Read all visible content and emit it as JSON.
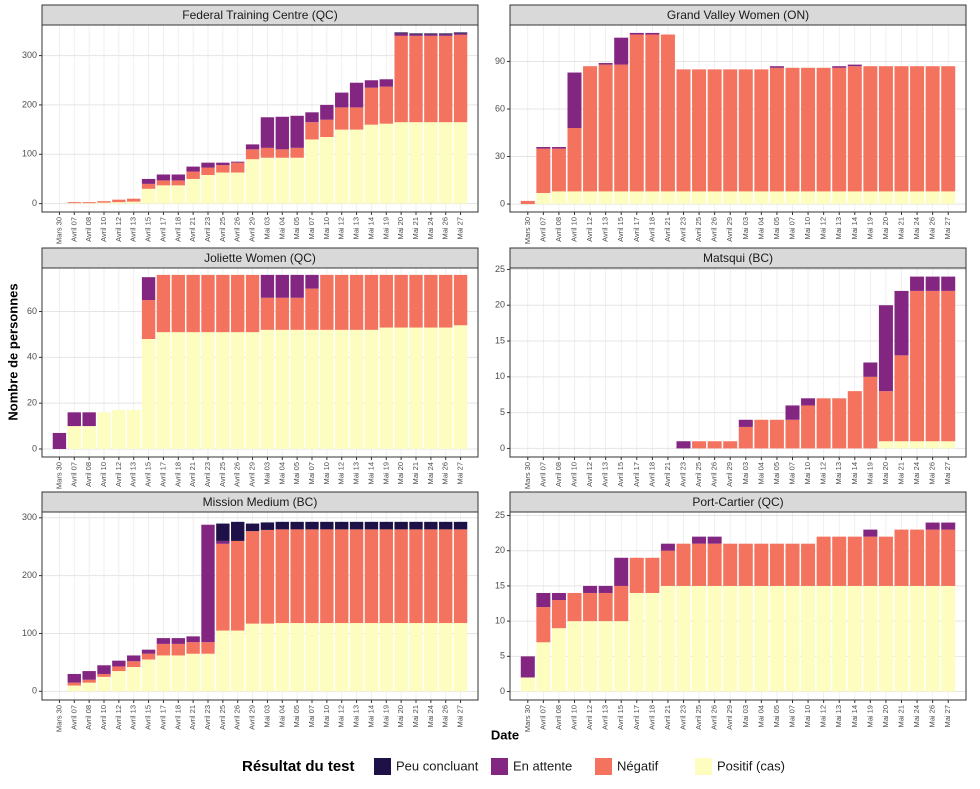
{
  "chart_data": {
    "type": "bar",
    "stacked": true,
    "grid": true,
    "x_label": "Date",
    "y_label": "Nombre de personnes",
    "legend_title": "Résultat du test",
    "legend_position": "bottom",
    "categories": [
      "Mars 30",
      "Avril 07",
      "Avril 08",
      "Avril 10",
      "Avril 12",
      "Avril 13",
      "Avril 15",
      "Avril 17",
      "Avril 18",
      "Avril 21",
      "Avril 23",
      "Avril 25",
      "Avril 26",
      "Avril 29",
      "Mai 03",
      "Mai 04",
      "Mai 05",
      "Mai 07",
      "Mai 10",
      "Mai 12",
      "Mai 13",
      "Mai 14",
      "Mai 19",
      "Mai 20",
      "Mai 21",
      "Mai 24",
      "Mai 26",
      "Mai 27"
    ],
    "series": [
      {
        "name": "Peu concluant",
        "color": "#1d1147"
      },
      {
        "name": "En attente",
        "color": "#822681"
      },
      {
        "name": "Négatif",
        "color": "#f4735f"
      },
      {
        "name": "Positif (cas)",
        "color": "#fcfdbf"
      }
    ],
    "facets": [
      {
        "title": "Federal Training Centre (QC)",
        "ylim": [
          -17,
          362
        ],
        "yticks": [
          0,
          100,
          200,
          300
        ],
        "values": [
          [
            0,
            0,
            0,
            0,
            0,
            0,
            0,
            0,
            0,
            0,
            0,
            0,
            0,
            0,
            0,
            0,
            0,
            0,
            0,
            0,
            0,
            0,
            0,
            2,
            2,
            2,
            2,
            2
          ],
          [
            0,
            0,
            0,
            0,
            0,
            0,
            10,
            12,
            12,
            10,
            10,
            5,
            2,
            10,
            62,
            66,
            65,
            20,
            30,
            30,
            50,
            15,
            15,
            5,
            3,
            3,
            3,
            3
          ],
          [
            0,
            2,
            2,
            3,
            5,
            6,
            10,
            10,
            10,
            15,
            15,
            15,
            20,
            20,
            20,
            17,
            20,
            35,
            35,
            45,
            45,
            75,
            75,
            175,
            175,
            175,
            175,
            177
          ],
          [
            0,
            1,
            1,
            2,
            3,
            4,
            30,
            37,
            37,
            50,
            58,
            63,
            63,
            90,
            93,
            93,
            93,
            130,
            135,
            150,
            150,
            160,
            162,
            165,
            165,
            165,
            165,
            165
          ]
        ]
      },
      {
        "title": "Grand Valley Women (ON)",
        "ylim": [
          -5,
          113
        ],
        "yticks": [
          0,
          30,
          60,
          90
        ],
        "values": [
          [
            0,
            0,
            0,
            0,
            0,
            0,
            0,
            0,
            0,
            0,
            0,
            0,
            0,
            0,
            0,
            0,
            0,
            0,
            0,
            0,
            0,
            0,
            0,
            0,
            0,
            0,
            0,
            0
          ],
          [
            0,
            1,
            1,
            35,
            0,
            1,
            17,
            1,
            1,
            0,
            0,
            0,
            0,
            0,
            0,
            0,
            1,
            0,
            0,
            0,
            1,
            1,
            0,
            0,
            0,
            0,
            0,
            0
          ],
          [
            2,
            28,
            27,
            40,
            79,
            80,
            80,
            99,
            99,
            99,
            77,
            77,
            77,
            77,
            77,
            77,
            78,
            78,
            78,
            78,
            78,
            79,
            79,
            79,
            79,
            79,
            79,
            79
          ],
          [
            0,
            7,
            8,
            8,
            8,
            8,
            8,
            8,
            8,
            8,
            8,
            8,
            8,
            8,
            8,
            8,
            8,
            8,
            8,
            8,
            8,
            8,
            8,
            8,
            8,
            8,
            8,
            8
          ]
        ]
      },
      {
        "title": "Joliette Women (QC)",
        "ylim": [
          -3.5,
          79
        ],
        "yticks": [
          0,
          20,
          40,
          60
        ],
        "values": [
          [
            0,
            0,
            0,
            0,
            0,
            0,
            0,
            0,
            0,
            0,
            0,
            0,
            0,
            0,
            0,
            0,
            0,
            0,
            0,
            0,
            0,
            0,
            0,
            0,
            0,
            0,
            0,
            0
          ],
          [
            7,
            6,
            6,
            0,
            0,
            0,
            10,
            0,
            0,
            0,
            0,
            0,
            0,
            0,
            10,
            10,
            10,
            6,
            0,
            0,
            0,
            0,
            0,
            0,
            0,
            0,
            0,
            0
          ],
          [
            0,
            0,
            0,
            0,
            0,
            0,
            17,
            25,
            25,
            25,
            25,
            25,
            25,
            25,
            14,
            14,
            14,
            18,
            24,
            24,
            24,
            24,
            23,
            23,
            23,
            23,
            23,
            22
          ],
          [
            0,
            10,
            10,
            16,
            17,
            17,
            48,
            51,
            51,
            51,
            51,
            51,
            51,
            51,
            52,
            52,
            52,
            52,
            52,
            52,
            52,
            52,
            53,
            53,
            53,
            53,
            53,
            54
          ]
        ]
      },
      {
        "title": "Matsqui (BC)",
        "ylim": [
          -1.2,
          25.2
        ],
        "yticks": [
          0,
          5,
          10,
          15,
          20,
          25
        ],
        "values": [
          [
            0,
            0,
            0,
            0,
            0,
            0,
            0,
            0,
            0,
            0,
            0,
            0,
            0,
            0,
            0,
            0,
            0,
            0,
            0,
            0,
            0,
            0,
            0,
            0,
            0,
            0,
            0,
            0
          ],
          [
            0,
            0,
            0,
            0,
            0,
            0,
            0,
            0,
            0,
            0,
            1,
            0,
            0,
            0,
            1,
            0,
            0,
            2,
            1,
            0,
            0,
            0,
            2,
            12,
            9,
            2,
            2,
            2
          ],
          [
            0,
            0,
            0,
            0,
            0,
            0,
            0,
            0,
            0,
            0,
            0,
            1,
            1,
            1,
            3,
            4,
            4,
            4,
            6,
            7,
            7,
            8,
            10,
            7,
            12,
            21,
            21,
            21
          ],
          [
            0,
            0,
            0,
            0,
            0,
            0,
            0,
            0,
            0,
            0,
            0,
            0,
            0,
            0,
            0,
            0,
            0,
            0,
            0,
            0,
            0,
            0,
            0,
            1,
            1,
            1,
            1,
            1
          ]
        ]
      },
      {
        "title": "Mission Medium (BC)",
        "ylim": [
          -15,
          310
        ],
        "yticks": [
          0,
          100,
          200,
          300
        ],
        "values": [
          [
            0,
            0,
            0,
            0,
            0,
            0,
            0,
            0,
            0,
            0,
            0,
            30,
            33,
            13,
            13,
            13,
            13,
            13,
            13,
            13,
            13,
            13,
            13,
            13,
            13,
            13,
            13,
            13
          ],
          [
            0,
            15,
            15,
            15,
            10,
            10,
            7,
            10,
            10,
            10,
            203,
            5,
            0,
            0,
            0,
            0,
            0,
            0,
            0,
            0,
            0,
            0,
            0,
            0,
            0,
            0,
            0,
            0
          ],
          [
            0,
            5,
            5,
            5,
            8,
            10,
            10,
            20,
            20,
            20,
            20,
            150,
            155,
            160,
            162,
            162,
            162,
            162,
            162,
            162,
            162,
            162,
            162,
            162,
            162,
            162,
            162,
            162
          ],
          [
            0,
            10,
            15,
            25,
            35,
            42,
            55,
            62,
            62,
            65,
            65,
            105,
            105,
            117,
            117,
            118,
            118,
            118,
            118,
            118,
            118,
            118,
            118,
            118,
            118,
            118,
            118,
            118
          ]
        ]
      },
      {
        "title": "Port-Cartier (QC)",
        "ylim": [
          -1.2,
          25.5
        ],
        "yticks": [
          0,
          5,
          10,
          15,
          20,
          25
        ],
        "values": [
          [
            0,
            0,
            0,
            0,
            0,
            0,
            0,
            0,
            0,
            0,
            0,
            0,
            0,
            0,
            0,
            0,
            0,
            0,
            0,
            0,
            0,
            0,
            0,
            0,
            0,
            0,
            0,
            0
          ],
          [
            3,
            2,
            1,
            0,
            1,
            1,
            4,
            0,
            0,
            1,
            0,
            1,
            1,
            0,
            0,
            0,
            0,
            0,
            0,
            0,
            0,
            0,
            1,
            0,
            0,
            0,
            1,
            1
          ],
          [
            0,
            5,
            4,
            4,
            4,
            4,
            5,
            5,
            5,
            5,
            6,
            6,
            6,
            6,
            6,
            6,
            6,
            6,
            6,
            7,
            7,
            7,
            7,
            7,
            8,
            8,
            8,
            8
          ],
          [
            2,
            7,
            9,
            10,
            10,
            10,
            10,
            14,
            14,
            15,
            15,
            15,
            15,
            15,
            15,
            15,
            15,
            15,
            15,
            15,
            15,
            15,
            15,
            15,
            15,
            15,
            15,
            15
          ]
        ]
      }
    ]
  }
}
